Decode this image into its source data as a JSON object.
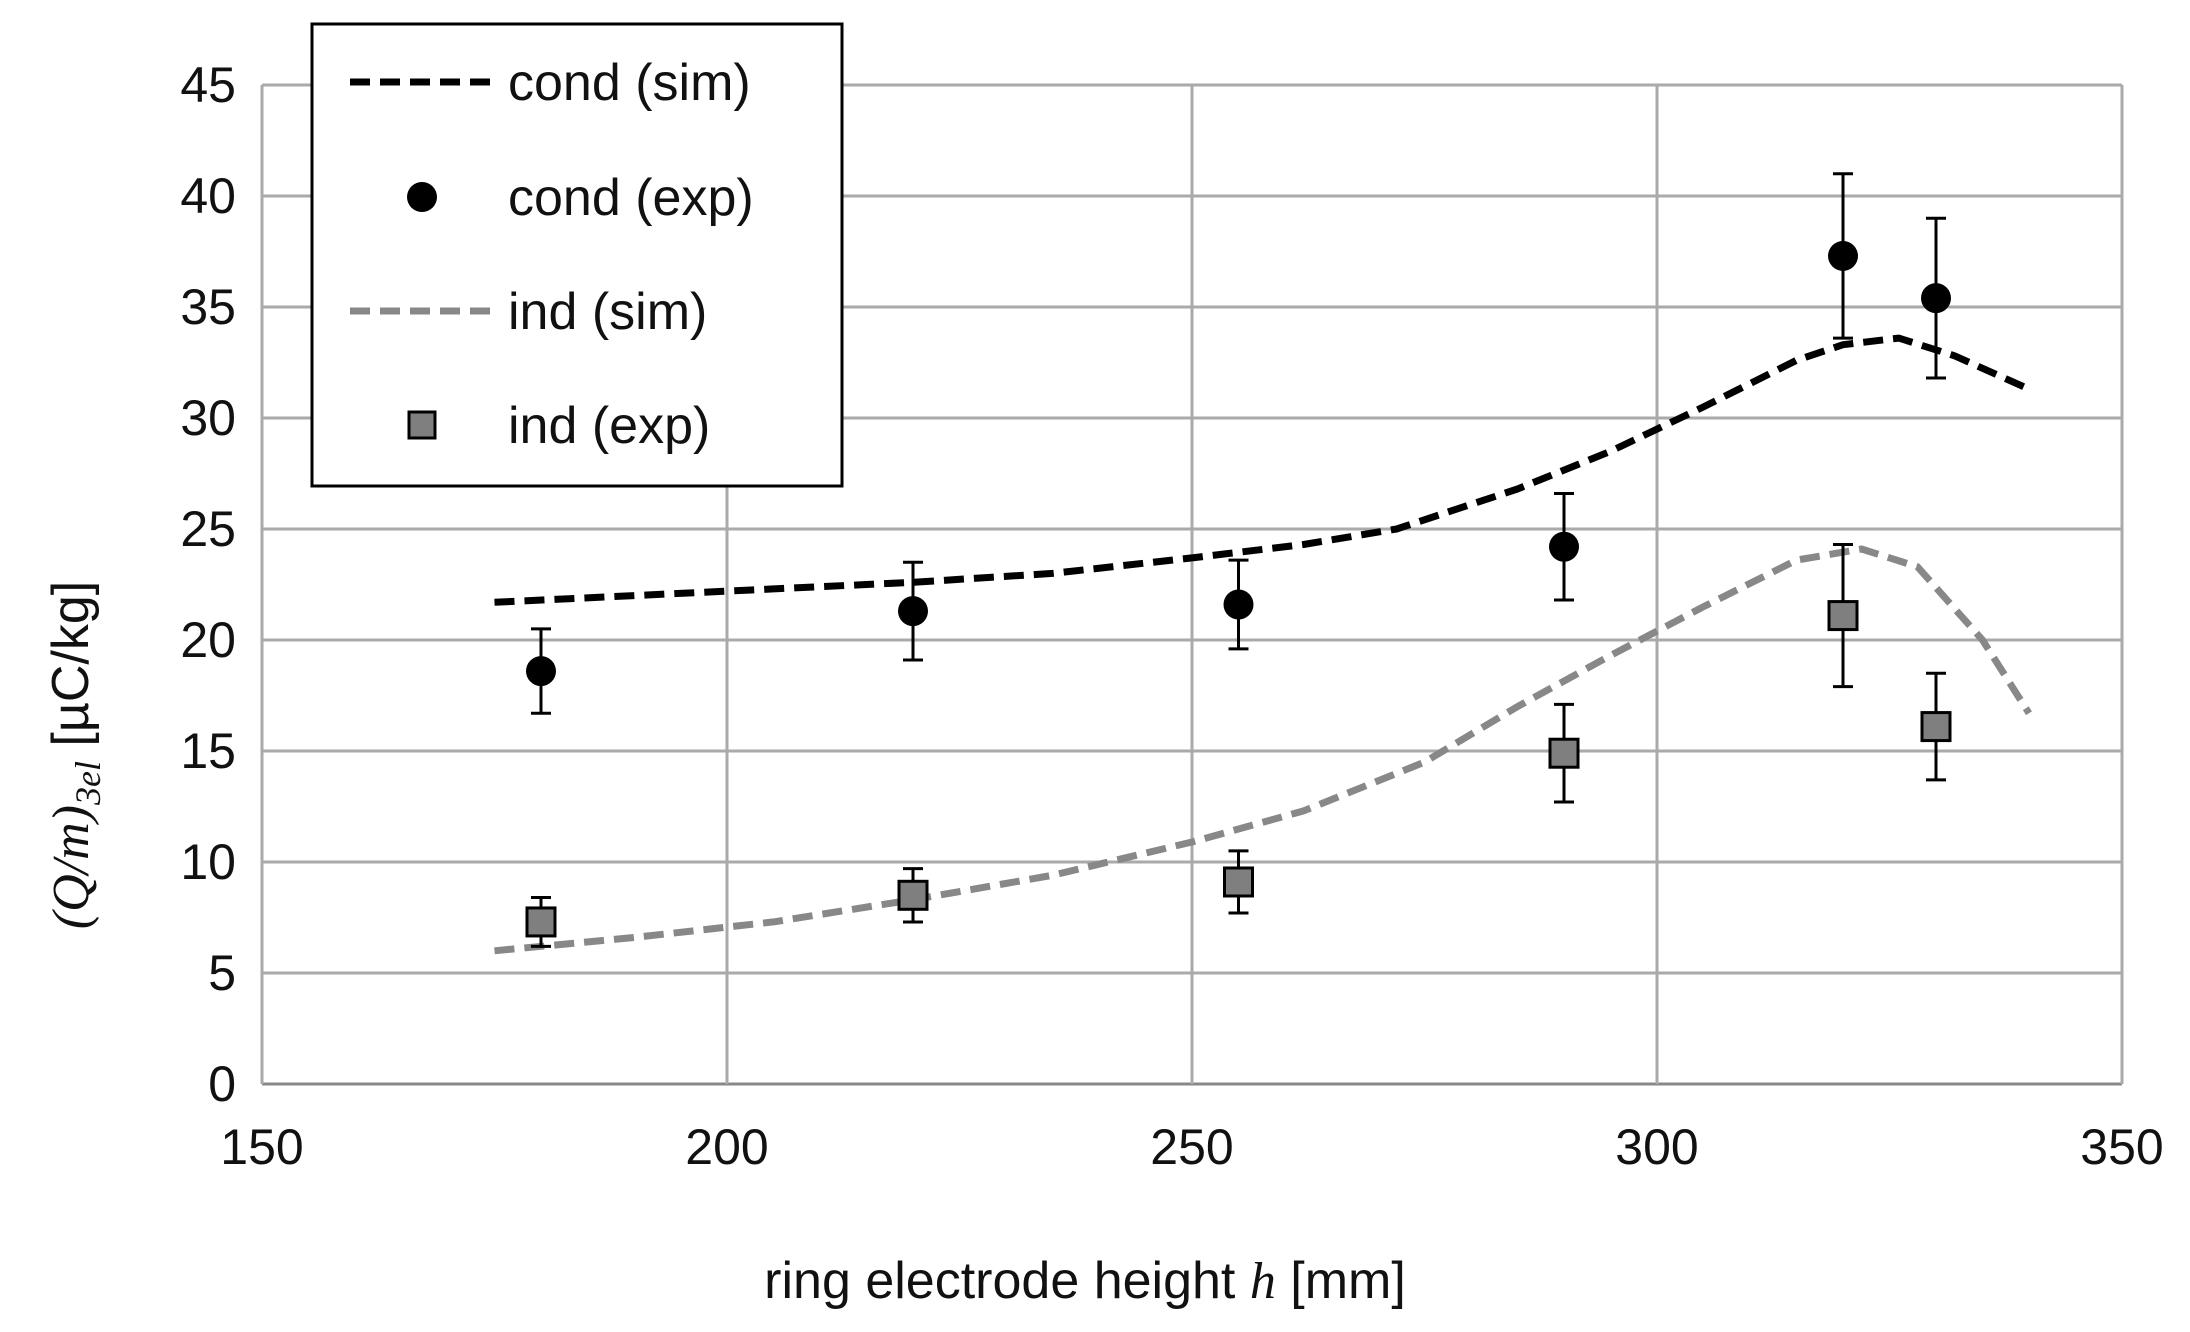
{
  "chart_data": {
    "type": "line",
    "title": "",
    "xlabel": {
      "prefix": "ring electrode height ",
      "var": "h",
      "suffix": " [mm]"
    },
    "ylabel": {
      "var": "(Q/m)",
      "sub": "3el",
      "suffix": " [µC/kg]"
    },
    "xlim": [
      150,
      350
    ],
    "ylim": [
      0,
      45
    ],
    "xticks": [
      150,
      200,
      250,
      300,
      350
    ],
    "yticks": [
      0,
      5,
      10,
      15,
      20,
      25,
      30,
      35,
      40,
      45
    ],
    "grid": true,
    "legend_position": "top-left",
    "series": [
      {
        "name": "cond (sim)",
        "kind": "line",
        "style": "dashed",
        "color": "#000000",
        "x": [
          175,
          190,
          205,
          220,
          235,
          250,
          262,
          272,
          285,
          295,
          305,
          315,
          320,
          326,
          332,
          340
        ],
        "y": [
          21.7,
          22.0,
          22.3,
          22.6,
          23.0,
          23.7,
          24.3,
          25.0,
          26.8,
          28.5,
          30.5,
          32.6,
          33.3,
          33.6,
          32.8,
          31.3
        ]
      },
      {
        "name": "cond (exp)",
        "kind": "points",
        "marker": "circle",
        "color": "#000000",
        "x": [
          180,
          220,
          255,
          290,
          320,
          330
        ],
        "y": [
          18.6,
          21.3,
          21.6,
          24.2,
          37.3,
          35.4
        ],
        "err": [
          1.9,
          2.2,
          2.0,
          2.4,
          3.7,
          3.6
        ]
      },
      {
        "name": "ind (sim)",
        "kind": "line",
        "style": "dashed",
        "color": "#888888",
        "x": [
          175,
          190,
          205,
          220,
          235,
          250,
          262,
          275,
          285,
          295,
          305,
          315,
          322,
          328,
          335,
          340
        ],
        "y": [
          6.0,
          6.6,
          7.3,
          8.3,
          9.4,
          10.9,
          12.3,
          14.5,
          17.0,
          19.3,
          21.5,
          23.6,
          24.1,
          23.3,
          20.0,
          16.7
        ]
      },
      {
        "name": "ind (exp)",
        "kind": "points",
        "marker": "square",
        "color": "#7f7f7f",
        "x": [
          180,
          220,
          255,
          290,
          320,
          330
        ],
        "y": [
          7.3,
          8.5,
          9.1,
          14.9,
          21.1,
          16.1
        ],
        "err": [
          1.1,
          1.2,
          1.4,
          2.2,
          3.2,
          2.4
        ]
      }
    ]
  }
}
